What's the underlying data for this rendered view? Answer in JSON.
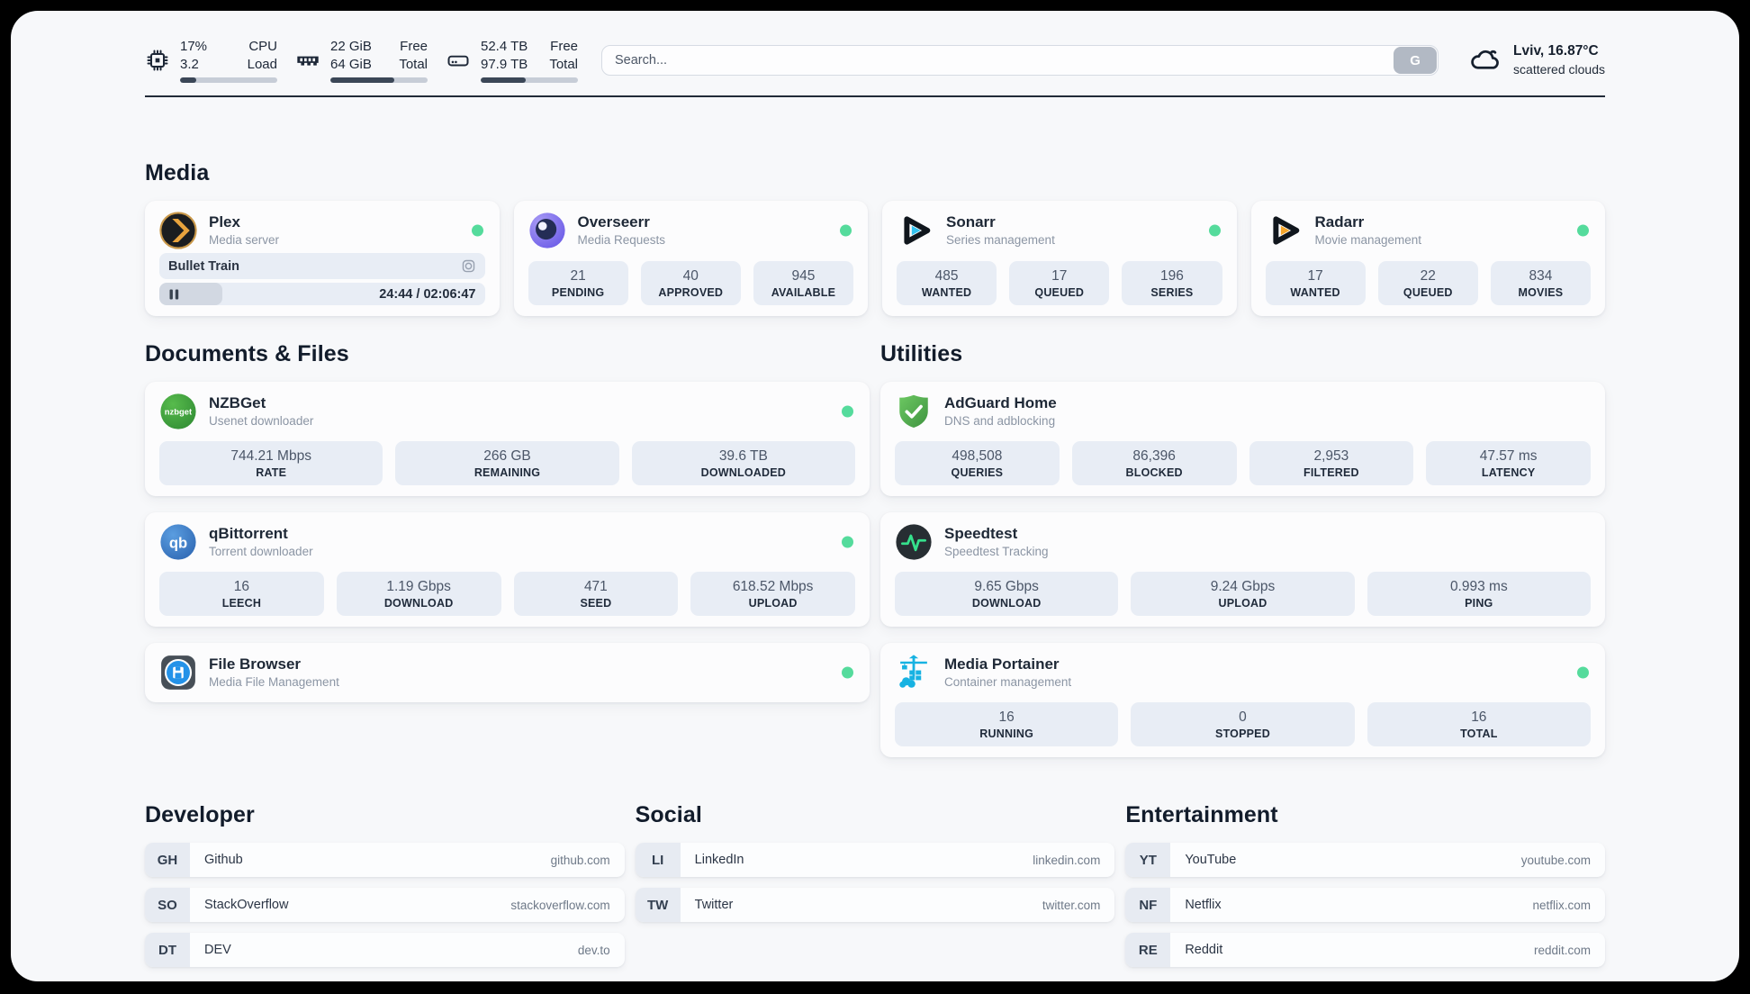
{
  "header": {
    "metrics": [
      {
        "name": "cpu",
        "value_top": "17%",
        "value_bottom": "3.2",
        "label_top": "CPU",
        "label_bottom": "Load",
        "progress_pct": 17
      },
      {
        "name": "memory",
        "value_top": "22 GiB",
        "value_bottom": "64 GiB",
        "label_top": "Free",
        "label_bottom": "Total",
        "progress_pct": 66
      },
      {
        "name": "disk",
        "value_top": "52.4 TB",
        "value_bottom": "97.9 TB",
        "label_top": "Free",
        "label_bottom": "Total",
        "progress_pct": 46
      }
    ],
    "search": {
      "placeholder": "Search...",
      "engine_button": "G"
    },
    "weather": {
      "location_temperature": "Lviv, 16.87°C",
      "condition": "scattered clouds"
    }
  },
  "sections": {
    "media": {
      "title": "Media",
      "apps": [
        {
          "name": "Plex",
          "description": "Media server",
          "status": "online",
          "now_playing": {
            "title": "Bullet Train",
            "time": "24:44 / 02:06:47",
            "progress_pct": 19.5
          }
        },
        {
          "name": "Overseerr",
          "description": "Media Requests",
          "status": "online",
          "stats": [
            {
              "value": "21",
              "label": "PENDING"
            },
            {
              "value": "40",
              "label": "APPROVED"
            },
            {
              "value": "945",
              "label": "AVAILABLE"
            }
          ]
        },
        {
          "name": "Sonarr",
          "description": "Series management",
          "status": "online",
          "stats": [
            {
              "value": "485",
              "label": "WANTED"
            },
            {
              "value": "17",
              "label": "QUEUED"
            },
            {
              "value": "196",
              "label": "SERIES"
            }
          ]
        },
        {
          "name": "Radarr",
          "description": "Movie management",
          "status": "online",
          "stats": [
            {
              "value": "17",
              "label": "WANTED"
            },
            {
              "value": "22",
              "label": "QUEUED"
            },
            {
              "value": "834",
              "label": "MOVIES"
            }
          ]
        }
      ]
    },
    "documents": {
      "title": "Documents & Files",
      "apps": [
        {
          "name": "NZBGet",
          "description": "Usenet downloader",
          "status": "online",
          "stats": [
            {
              "value": "744.21 Mbps",
              "label": "RATE"
            },
            {
              "value": "266 GB",
              "label": "REMAINING"
            },
            {
              "value": "39.6 TB",
              "label": "DOWNLOADED"
            }
          ]
        },
        {
          "name": "qBittorrent",
          "description": "Torrent downloader",
          "status": "online",
          "stats": [
            {
              "value": "16",
              "label": "LEECH"
            },
            {
              "value": "1.19 Gbps",
              "label": "DOWNLOAD"
            },
            {
              "value": "471",
              "label": "SEED"
            },
            {
              "value": "618.52 Mbps",
              "label": "UPLOAD"
            }
          ]
        },
        {
          "name": "File Browser",
          "description": "Media File Management",
          "status": "online"
        }
      ]
    },
    "utilities": {
      "title": "Utilities",
      "apps": [
        {
          "name": "AdGuard Home",
          "description": "DNS and adblocking",
          "stats": [
            {
              "value": "498,508",
              "label": "QUERIES"
            },
            {
              "value": "86,396",
              "label": "BLOCKED"
            },
            {
              "value": "2,953",
              "label": "FILTERED"
            },
            {
              "value": "47.57 ms",
              "label": "LATENCY"
            }
          ]
        },
        {
          "name": "Speedtest",
          "description": "Speedtest Tracking",
          "stats": [
            {
              "value": "9.65 Gbps",
              "label": "DOWNLOAD"
            },
            {
              "value": "9.24 Gbps",
              "label": "UPLOAD"
            },
            {
              "value": "0.993 ms",
              "label": "PING"
            }
          ]
        },
        {
          "name": "Media Portainer",
          "description": "Container management",
          "status": "online",
          "stats": [
            {
              "value": "16",
              "label": "RUNNING"
            },
            {
              "value": "0",
              "label": "STOPPED"
            },
            {
              "value": "16",
              "label": "TOTAL"
            }
          ]
        }
      ]
    },
    "bookmarks": [
      {
        "title": "Developer",
        "items": [
          {
            "abbr": "GH",
            "name": "Github",
            "domain": "github.com"
          },
          {
            "abbr": "SO",
            "name": "StackOverflow",
            "domain": "stackoverflow.com"
          },
          {
            "abbr": "DT",
            "name": "DEV",
            "domain": "dev.to"
          }
        ]
      },
      {
        "title": "Social",
        "items": [
          {
            "abbr": "LI",
            "name": "LinkedIn",
            "domain": "linkedin.com"
          },
          {
            "abbr": "TW",
            "name": "Twitter",
            "domain": "twitter.com"
          }
        ]
      },
      {
        "title": "Entertainment",
        "items": [
          {
            "abbr": "YT",
            "name": "YouTube",
            "domain": "youtube.com"
          },
          {
            "abbr": "NF",
            "name": "Netflix",
            "domain": "netflix.com"
          },
          {
            "abbr": "RE",
            "name": "Reddit",
            "domain": "reddit.com"
          }
        ]
      }
    ]
  },
  "colors": {
    "status_online": "#55db9c",
    "progress_fill": "#3b4757",
    "stat_box_bg": "#e8edf5",
    "heading": "#121c2b"
  }
}
